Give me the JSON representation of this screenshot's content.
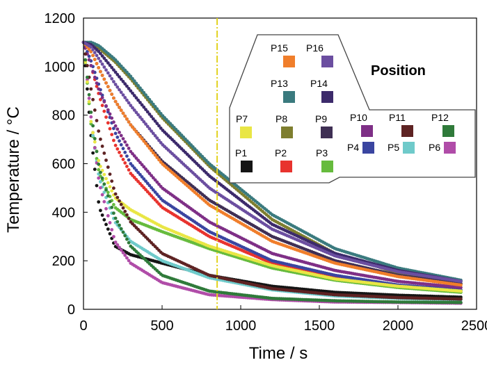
{
  "chart_data": {
    "type": "scatter",
    "xlabel": "Time / s",
    "ylabel": "Temperature / °C",
    "xlim": [
      0,
      2500
    ],
    "ylim": [
      0,
      1200
    ],
    "xticks": [
      "0",
      "500",
      "1000",
      "1500",
      "2000",
      "2500"
    ],
    "yticks": [
      "0",
      "200",
      "400",
      "600",
      "800",
      "1000",
      "1200"
    ],
    "grid": false,
    "legend_title": "Position",
    "legend_placement": "top-right",
    "vline_x": 850,
    "vline_color": "#e2d21f",
    "series": [
      {
        "name": "P1",
        "color": "#151515",
        "x": [
          0,
          50,
          100,
          200,
          300,
          500,
          800,
          1200,
          1600,
          2000,
          2400
        ],
        "y": [
          1100,
          700,
          420,
          260,
          225,
          190,
          140,
          95,
          70,
          58,
          50
        ]
      },
      {
        "name": "P2",
        "color": "#e8332e",
        "x": [
          0,
          50,
          100,
          200,
          300,
          500,
          800,
          1200,
          1600,
          2000,
          2400
        ],
        "y": [
          1100,
          1000,
          880,
          680,
          560,
          420,
          300,
          190,
          130,
          95,
          75
        ]
      },
      {
        "name": "P3",
        "color": "#66bb3d",
        "x": [
          0,
          50,
          100,
          200,
          300,
          500,
          800,
          1200,
          1600,
          2000,
          2400
        ],
        "y": [
          1100,
          750,
          560,
          420,
          370,
          320,
          250,
          170,
          120,
          90,
          70
        ]
      },
      {
        "name": "P4",
        "color": "#3a45a0",
        "x": [
          0,
          50,
          100,
          200,
          300,
          500,
          800,
          1200,
          1600,
          2000,
          2400
        ],
        "y": [
          1100,
          1020,
          920,
          730,
          600,
          450,
          320,
          200,
          140,
          100,
          80
        ]
      },
      {
        "name": "P5",
        "color": "#6fcaca",
        "x": [
          0,
          50,
          100,
          200,
          300,
          500,
          800,
          1200,
          1600,
          2000,
          2400
        ],
        "y": [
          1100,
          760,
          540,
          360,
          280,
          200,
          130,
          80,
          55,
          45,
          40
        ]
      },
      {
        "name": "P6",
        "color": "#b04ca8",
        "x": [
          0,
          50,
          100,
          200,
          300,
          500,
          800,
          1200,
          1600,
          2000,
          2400
        ],
        "y": [
          1100,
          780,
          520,
          280,
          190,
          110,
          60,
          40,
          30,
          28,
          25
        ]
      },
      {
        "name": "P7",
        "color": "#e9e645",
        "x": [
          0,
          50,
          100,
          200,
          300,
          500,
          800,
          1200,
          1600,
          2000,
          2400
        ],
        "y": [
          1100,
          760,
          600,
          460,
          410,
          340,
          260,
          180,
          125,
          95,
          75
        ]
      },
      {
        "name": "P8",
        "color": "#7e7e2f",
        "x": [
          0,
          50,
          100,
          200,
          300,
          500,
          800,
          1200,
          1600,
          2000,
          2400
        ],
        "y": [
          1100,
          1095,
          1075,
          1020,
          950,
          790,
          590,
          370,
          230,
          150,
          105
        ]
      },
      {
        "name": "P9",
        "color": "#3f2f54",
        "x": [
          0,
          50,
          100,
          200,
          300,
          500,
          800,
          1200,
          1600,
          2000,
          2400
        ],
        "y": [
          1100,
          1060,
          990,
          860,
          760,
          610,
          450,
          300,
          200,
          140,
          105
        ]
      },
      {
        "name": "P10",
        "color": "#7e2f86",
        "x": [
          0,
          50,
          100,
          200,
          300,
          500,
          800,
          1200,
          1600,
          2000,
          2400
        ],
        "y": [
          1100,
          1000,
          900,
          760,
          650,
          500,
          360,
          230,
          160,
          115,
          90
        ]
      },
      {
        "name": "P11",
        "color": "#5e2323",
        "x": [
          0,
          50,
          100,
          200,
          300,
          500,
          800,
          1200,
          1600,
          2000,
          2400
        ],
        "y": [
          1100,
          900,
          720,
          480,
          360,
          230,
          140,
          85,
          60,
          48,
          42
        ]
      },
      {
        "name": "P12",
        "color": "#2f7a3a",
        "x": [
          0,
          50,
          100,
          200,
          300,
          500,
          800,
          1200,
          1600,
          2000,
          2400
        ],
        "y": [
          1100,
          800,
          580,
          380,
          260,
          140,
          75,
          45,
          35,
          30,
          28
        ]
      },
      {
        "name": "P13",
        "color": "#3a7a7e",
        "x": [
          0,
          50,
          100,
          200,
          300,
          500,
          800,
          1200,
          1600,
          2000,
          2400
        ],
        "y": [
          1100,
          1100,
          1085,
          1030,
          960,
          800,
          600,
          390,
          250,
          170,
          120
        ]
      },
      {
        "name": "P14",
        "color": "#3c2a6b",
        "x": [
          0,
          50,
          100,
          200,
          300,
          500,
          800,
          1200,
          1600,
          2000,
          2400
        ],
        "y": [
          1100,
          1090,
          1060,
          980,
          900,
          740,
          550,
          350,
          230,
          160,
          115
        ]
      },
      {
        "name": "P15",
        "color": "#f07e2b",
        "x": [
          0,
          50,
          100,
          200,
          300,
          500,
          800,
          1200,
          1600,
          2000,
          2400
        ],
        "y": [
          1100,
          1060,
          990,
          860,
          760,
          600,
          430,
          280,
          190,
          135,
          100
        ]
      },
      {
        "name": "P16",
        "color": "#6b4ea0",
        "x": [
          0,
          50,
          100,
          200,
          300,
          500,
          800,
          1200,
          1600,
          2000,
          2400
        ],
        "y": [
          1100,
          1080,
          1030,
          930,
          840,
          680,
          500,
          330,
          220,
          155,
          115
        ]
      }
    ]
  }
}
